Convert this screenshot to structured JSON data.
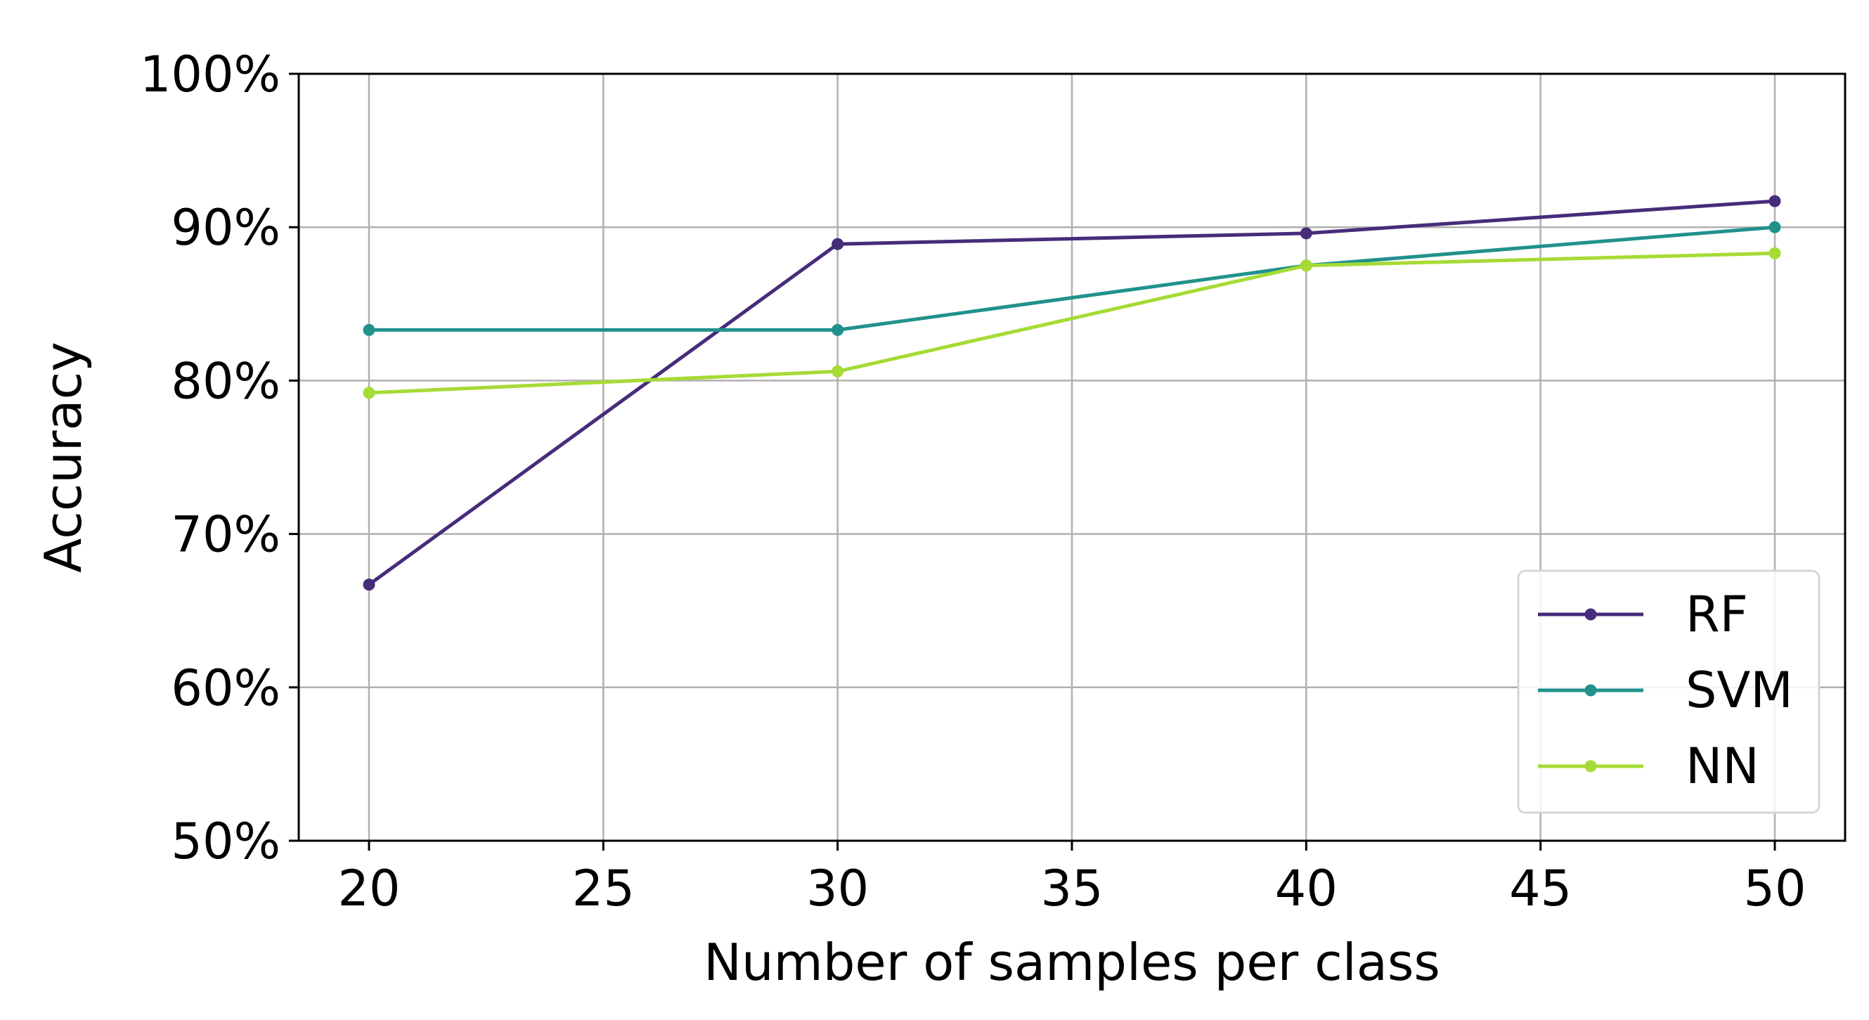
{
  "chart_data": {
    "type": "line",
    "title": "",
    "xlabel": "Number of samples per class",
    "ylabel": "Accuracy",
    "x": [
      20,
      30,
      40,
      50
    ],
    "xlim": [
      18.5,
      51.5
    ],
    "ylim": [
      50,
      100
    ],
    "xticks": [
      20,
      25,
      30,
      35,
      40,
      45,
      50
    ],
    "yticks": [
      50,
      60,
      70,
      80,
      90,
      100
    ],
    "ytick_format": "percent",
    "grid": true,
    "legend_position": "lower-right",
    "series": [
      {
        "name": "RF",
        "color": "#472c7a",
        "values": [
          66.7,
          88.9,
          89.6,
          91.7
        ]
      },
      {
        "name": "SVM",
        "color": "#21918c",
        "values": [
          83.3,
          83.3,
          87.5,
          90.0
        ]
      },
      {
        "name": "NN",
        "color": "#a6db35",
        "values": [
          79.2,
          80.6,
          87.5,
          88.3
        ]
      }
    ]
  }
}
